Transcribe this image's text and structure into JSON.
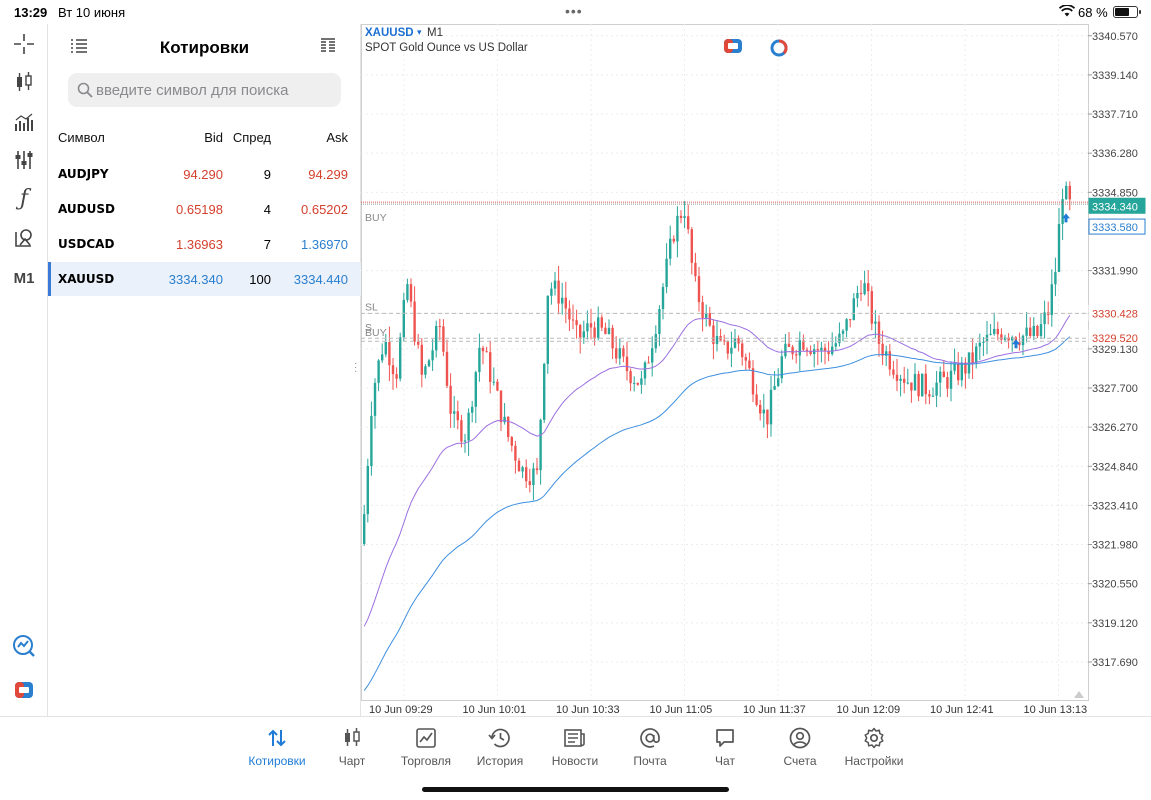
{
  "status_bar": {
    "time": "13:29",
    "date": "Вт 10 июня",
    "battery_text": "68 %",
    "battery_level": 0.68
  },
  "left_rail": {
    "tools": [
      {
        "name": "crosshair-icon"
      },
      {
        "name": "candlestick-icon"
      },
      {
        "name": "volume-bars-icon"
      },
      {
        "name": "sliders-icon"
      },
      {
        "name": "function-icon",
        "glyph": "ƒ"
      },
      {
        "name": "objects-icon"
      },
      {
        "name": "timeframe-button",
        "label": "M1"
      },
      {
        "name": "trade-signals-icon"
      },
      {
        "name": "one-click-trading-icon"
      }
    ]
  },
  "quotes": {
    "title": "Котировки",
    "search_placeholder": "введите символ для поиска",
    "columns": {
      "symbol": "Символ",
      "bid": "Bid",
      "spread": "Спред",
      "ask": "Ask"
    },
    "rows": [
      {
        "symbol": "AUDJPY",
        "bid": "94.290",
        "spread": "9",
        "ask": "94.299",
        "color": "red",
        "selected": false
      },
      {
        "symbol": "AUDUSD",
        "bid": "0.65198",
        "spread": "4",
        "ask": "0.65202",
        "color": "red",
        "selected": false
      },
      {
        "symbol": "USDCAD",
        "bid": "1.36963",
        "spread": "7",
        "ask": "1.36970",
        "color": "mixed",
        "selected": false
      },
      {
        "symbol": "XAUUSD",
        "bid": "3334.340",
        "spread": "100",
        "ask": "3334.440",
        "color": "blue",
        "selected": true
      }
    ]
  },
  "chart": {
    "symbol": "XAUUSD",
    "timeframe": "M1",
    "description": "SPOT Gold Ounce vs US Dollar",
    "price_labels": [
      "3340.570",
      "3339.140",
      "3337.710",
      "3336.280",
      "3334.850",
      "3331.990",
      "3330.428",
      "3329.130",
      "3327.700",
      "3326.270",
      "3324.840",
      "3323.410",
      "3321.980",
      "3320.550",
      "3319.120",
      "3317.690"
    ],
    "time_labels": [
      "10 Jun 09:29",
      "10 Jun 10:01",
      "10 Jun 10:33",
      "10 Jun 11:05",
      "10 Jun 11:37",
      "10 Jun 12:09",
      "10 Jun 12:41",
      "10 Jun 13:13"
    ],
    "bid_price": "3334.340",
    "buy_position_price": "3333.580",
    "sl_price": "3330.428",
    "second_buy_price": "3329.520",
    "line_labels": {
      "buy_top": "BUY",
      "sl": "SL",
      "buy_bottom": "BUY",
      "buy_overlap": "S"
    },
    "colors": {
      "bull": "#26a69a",
      "bear": "#ef5350",
      "ma_fast": "#9c6fe0",
      "ma_slow": "#3d8fe0",
      "bid_tag": "#26a69a",
      "sl_tag": "#d4402e",
      "accent": "#1f7bd6"
    }
  },
  "tabs": [
    {
      "label": "Котировки",
      "icon": "arrows-updown-icon",
      "active": true
    },
    {
      "label": "Чарт",
      "icon": "candles-icon",
      "active": false
    },
    {
      "label": "Торговля",
      "icon": "trade-chart-icon",
      "active": false
    },
    {
      "label": "История",
      "icon": "history-clock-icon",
      "active": false
    },
    {
      "label": "Новости",
      "icon": "news-icon",
      "active": false
    },
    {
      "label": "Почта",
      "icon": "at-sign-icon",
      "active": false
    },
    {
      "label": "Чат",
      "icon": "chat-bubble-icon",
      "active": false
    },
    {
      "label": "Счета",
      "icon": "account-user-icon",
      "active": false
    },
    {
      "label": "Настройки",
      "icon": "gear-icon",
      "active": false
    }
  ]
}
